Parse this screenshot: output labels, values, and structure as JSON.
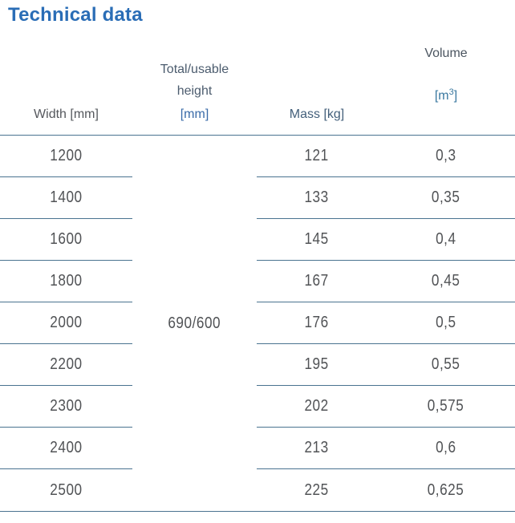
{
  "title": "Technical data",
  "table": {
    "headers": {
      "width": "Width [mm]",
      "height_line1": "Total/usable",
      "height_line2": "height",
      "height_unit": "[mm]",
      "mass": "Mass [kg]",
      "volume": "Volume",
      "volume_unit_open": "[m",
      "volume_unit_sup": "3",
      "volume_unit_close": "]"
    },
    "merged_height_value": "690/600",
    "rows": [
      {
        "width": "1200",
        "mass": "121",
        "volume": "0,3"
      },
      {
        "width": "1400",
        "mass": "133",
        "volume": "0,35"
      },
      {
        "width": "1600",
        "mass": "145",
        "volume": "0,4"
      },
      {
        "width": "1800",
        "mass": "167",
        "volume": "0,45"
      },
      {
        "width": "2000",
        "mass": "176",
        "volume": "0,5"
      },
      {
        "width": "2200",
        "mass": "195",
        "volume": "0,55"
      },
      {
        "width": "2300",
        "mass": "202",
        "volume": "0,575"
      },
      {
        "width": "2400",
        "mass": "213",
        "volume": "0,6"
      },
      {
        "width": "2500",
        "mass": "225",
        "volume": "0,625"
      }
    ]
  },
  "colors": {
    "title": "#2a6db6",
    "header_width": "#55585d",
    "header_slate": "#4c5c6e",
    "unit_blue": "#3a6ba8",
    "mass_label": "#44607b",
    "volume_label": "#4b5560",
    "volume_unit": "#3a78a0",
    "line": "#4a7390",
    "number": "#515356"
  }
}
